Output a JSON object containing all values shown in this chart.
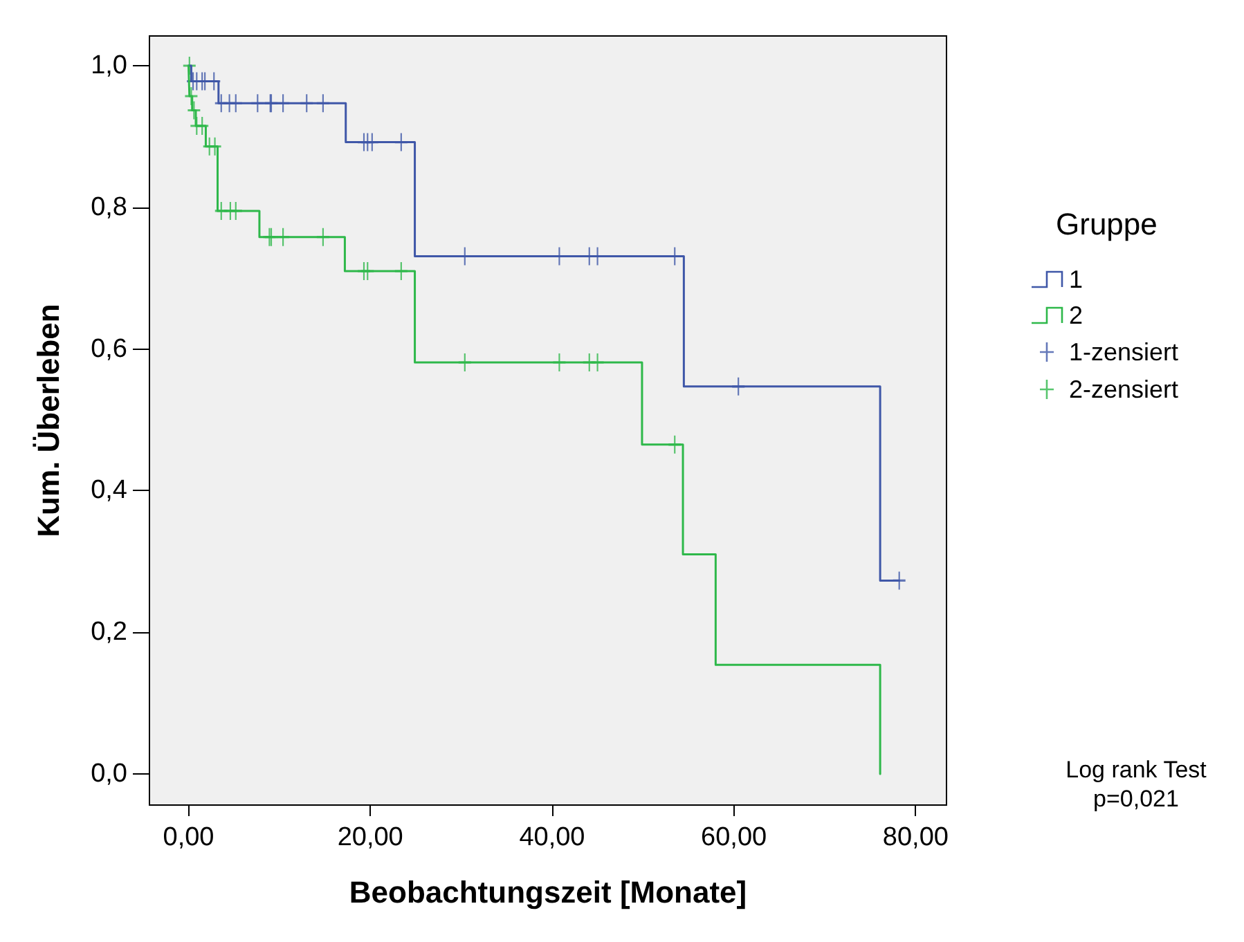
{
  "chart_data": {
    "type": "step",
    "xlabel": "Beobachtungszeit [Monate]",
    "ylabel": "Kum. Überleben",
    "legend_title": "Gruppe",
    "legend": "right",
    "grid": false,
    "xlim": [
      -4.3,
      83.4
    ],
    "xticks": [
      {
        "value": 0,
        "label": "0,00"
      },
      {
        "value": 20,
        "label": "20,00"
      },
      {
        "value": 40,
        "label": "40,00"
      },
      {
        "value": 60,
        "label": "60,00"
      },
      {
        "value": 80,
        "label": "80,00"
      }
    ],
    "ylim": [
      -0.044,
      1.042
    ],
    "yticks": [
      {
        "value": 0,
        "label": "0,0"
      },
      {
        "value": 0.2,
        "label": "0,2"
      },
      {
        "value": 0.4,
        "label": "0,4"
      },
      {
        "value": 0.6,
        "label": "0,6"
      },
      {
        "value": 0.8,
        "label": "0,8"
      },
      {
        "value": 1,
        "label": "1,0"
      }
    ],
    "series": [
      {
        "name": "1",
        "color": "#3f57a8",
        "x": [
          0,
          0.3,
          3.3,
          17.3,
          24.9,
          54.5,
          76.1,
          78.2
        ],
        "values": [
          1,
          0.978,
          0.947,
          0.892,
          0.731,
          0.547,
          0.273,
          0.273
        ]
      },
      {
        "name": "2",
        "color": "#2eb84a",
        "x": [
          0,
          0.1,
          0.4,
          0.8,
          1.9,
          3.2,
          7.8,
          17.2,
          24.9,
          49.9,
          54.4,
          58.0,
          76.1
        ],
        "values": [
          1,
          0.957,
          0.937,
          0.915,
          0.886,
          0.795,
          0.758,
          0.71,
          0.581,
          0.465,
          0.31,
          0.154,
          0
        ]
      },
      {
        "name": "1-zensiert",
        "type": "scatter",
        "marker": "cross",
        "color": "#3f57a8",
        "x": [
          0.5,
          0.9,
          1.5,
          1.8,
          2.8,
          3.6,
          4.5,
          5.2,
          7.6,
          9.0,
          9.1,
          10.4,
          13.0,
          14.8,
          19.3,
          19.7,
          20.2,
          23.4,
          30.4,
          40.8,
          44.1,
          45.0,
          53.5,
          60.5,
          78.2
        ],
        "values": [
          0.978,
          0.978,
          0.978,
          0.978,
          0.978,
          0.947,
          0.947,
          0.947,
          0.947,
          0.947,
          0.947,
          0.947,
          0.947,
          0.947,
          0.892,
          0.892,
          0.892,
          0.892,
          0.731,
          0.731,
          0.731,
          0.731,
          0.731,
          0.547,
          0.273
        ]
      },
      {
        "name": "2-zensiert",
        "type": "scatter",
        "marker": "cross",
        "color": "#2eb84a",
        "x": [
          0.1,
          0.3,
          0.6,
          0.9,
          1.5,
          2.3,
          2.9,
          3.6,
          4.6,
          5.2,
          8.9,
          9.1,
          10.4,
          14.8,
          19.3,
          19.7,
          23.4,
          30.4,
          40.8,
          44.1,
          45.0,
          53.5
        ],
        "values": [
          1,
          0.957,
          0.937,
          0.915,
          0.915,
          0.886,
          0.886,
          0.795,
          0.795,
          0.795,
          0.758,
          0.758,
          0.758,
          0.758,
          0.71,
          0.71,
          0.71,
          0.581,
          0.581,
          0.581,
          0.581,
          0.465
        ]
      }
    ],
    "annotations": [
      "Log rank Test",
      "p=0,021"
    ]
  }
}
